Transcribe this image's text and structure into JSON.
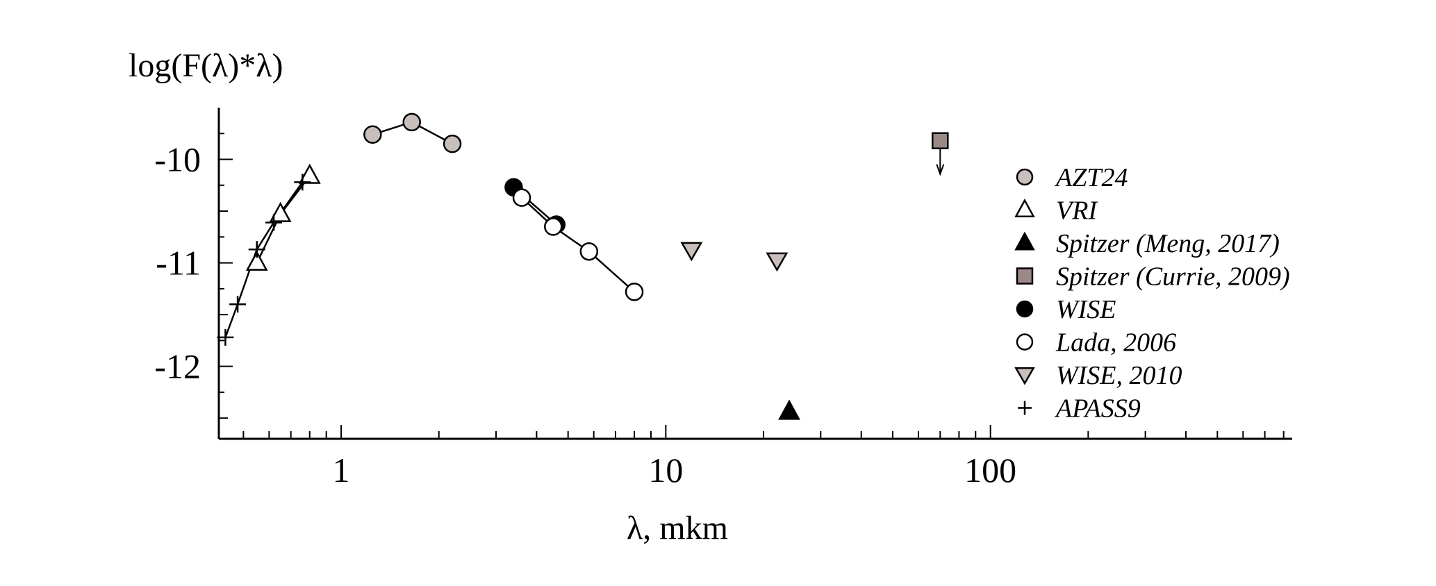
{
  "chart_data": {
    "type": "scatter",
    "title": "",
    "xlabel": "λ, mkm",
    "ylabel": "log(F(λ)*λ)",
    "x_scale": "log",
    "xlim": [
      0.42,
      850
    ],
    "ylim": [
      -12.7,
      -9.5
    ],
    "x_ticks": [
      {
        "value": 1,
        "label": "1"
      },
      {
        "value": 10,
        "label": "10"
      },
      {
        "value": 100,
        "label": "100"
      }
    ],
    "y_ticks": [
      {
        "value": -10,
        "label": "-10"
      },
      {
        "value": -11,
        "label": "-11"
      },
      {
        "value": -12,
        "label": "-12"
      }
    ],
    "grid": false,
    "legend_position": "right",
    "series": [
      {
        "name": "AZT24",
        "marker": "circle",
        "fill": "#c8bfbc",
        "connected": true,
        "points": [
          [
            1.25,
            -9.76
          ],
          [
            1.65,
            -9.64
          ],
          [
            2.2,
            -9.85
          ]
        ]
      },
      {
        "name": "VRI",
        "marker": "triangle-up",
        "fill": "#ffffff",
        "connected": true,
        "points": [
          [
            0.55,
            -11.0
          ],
          [
            0.65,
            -10.53
          ],
          [
            0.8,
            -10.16
          ]
        ]
      },
      {
        "name": "Spitzer (Meng, 2017)",
        "marker": "triangle-up",
        "fill": "#000000",
        "connected": false,
        "points": [
          [
            24,
            -12.44
          ]
        ]
      },
      {
        "name": "Spitzer (Currie, 2009)",
        "marker": "square",
        "fill": "#9a8a86",
        "connected": false,
        "upper_limit": true,
        "points": [
          [
            70,
            -9.82
          ]
        ]
      },
      {
        "name": "WISE",
        "marker": "circle",
        "fill": "#000000",
        "connected": true,
        "points": [
          [
            3.4,
            -10.27
          ],
          [
            4.6,
            -10.63
          ]
        ]
      },
      {
        "name": "Lada, 2006",
        "marker": "circle",
        "fill": "#ffffff",
        "connected": true,
        "points": [
          [
            3.6,
            -10.37
          ],
          [
            4.5,
            -10.65
          ],
          [
            5.8,
            -10.89
          ],
          [
            8.0,
            -11.28
          ]
        ]
      },
      {
        "name": "WISE, 2010",
        "marker": "triangle-down",
        "fill": "#c8bfbc",
        "connected": false,
        "points": [
          [
            12,
            -10.88
          ],
          [
            22,
            -10.98
          ]
        ]
      },
      {
        "name": "APASS9",
        "marker": "plus",
        "fill": "#000000",
        "connected": true,
        "points": [
          [
            0.44,
            -11.72
          ],
          [
            0.48,
            -11.4
          ],
          [
            0.55,
            -10.87
          ],
          [
            0.62,
            -10.61
          ],
          [
            0.76,
            -10.22
          ]
        ]
      }
    ]
  }
}
